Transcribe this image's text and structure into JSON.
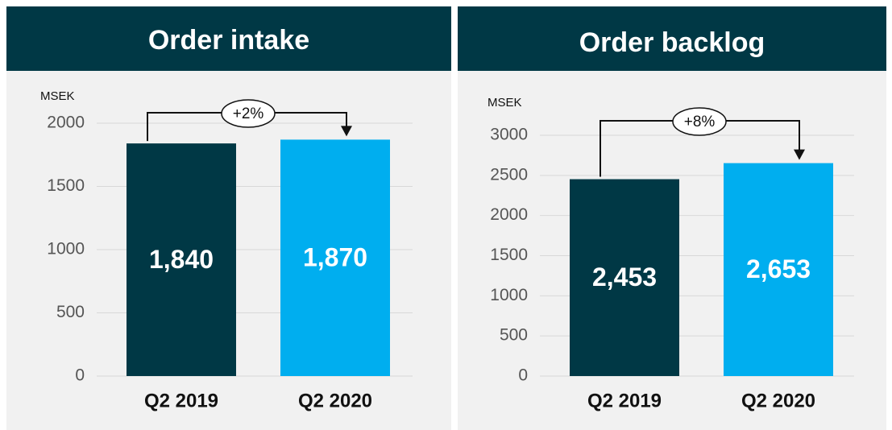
{
  "chart_data": [
    {
      "type": "bar",
      "title": "Order intake",
      "y_label": "MSEK",
      "categories": [
        "Q2 2019",
        "Q2 2020"
      ],
      "values": [
        1840,
        1870
      ],
      "value_labels": [
        "1,840",
        "1,870"
      ],
      "colors": [
        "#003845",
        "#00aeef"
      ],
      "ylim": [
        0,
        2000
      ],
      "yticks": [
        0,
        500,
        1000,
        1500,
        2000
      ],
      "grid": true,
      "annotation": "+2%"
    },
    {
      "type": "bar",
      "title": "Order backlog",
      "y_label": "MSEK",
      "categories": [
        "Q2 2019",
        "Q2 2020"
      ],
      "values": [
        2453,
        2653
      ],
      "value_labels": [
        "2,453",
        "2,653"
      ],
      "colors": [
        "#003845",
        "#00aeef"
      ],
      "ylim": [
        0,
        3000
      ],
      "yticks": [
        0,
        500,
        1000,
        1500,
        2000,
        2500,
        3000
      ],
      "grid": true,
      "annotation": "+8%"
    }
  ]
}
